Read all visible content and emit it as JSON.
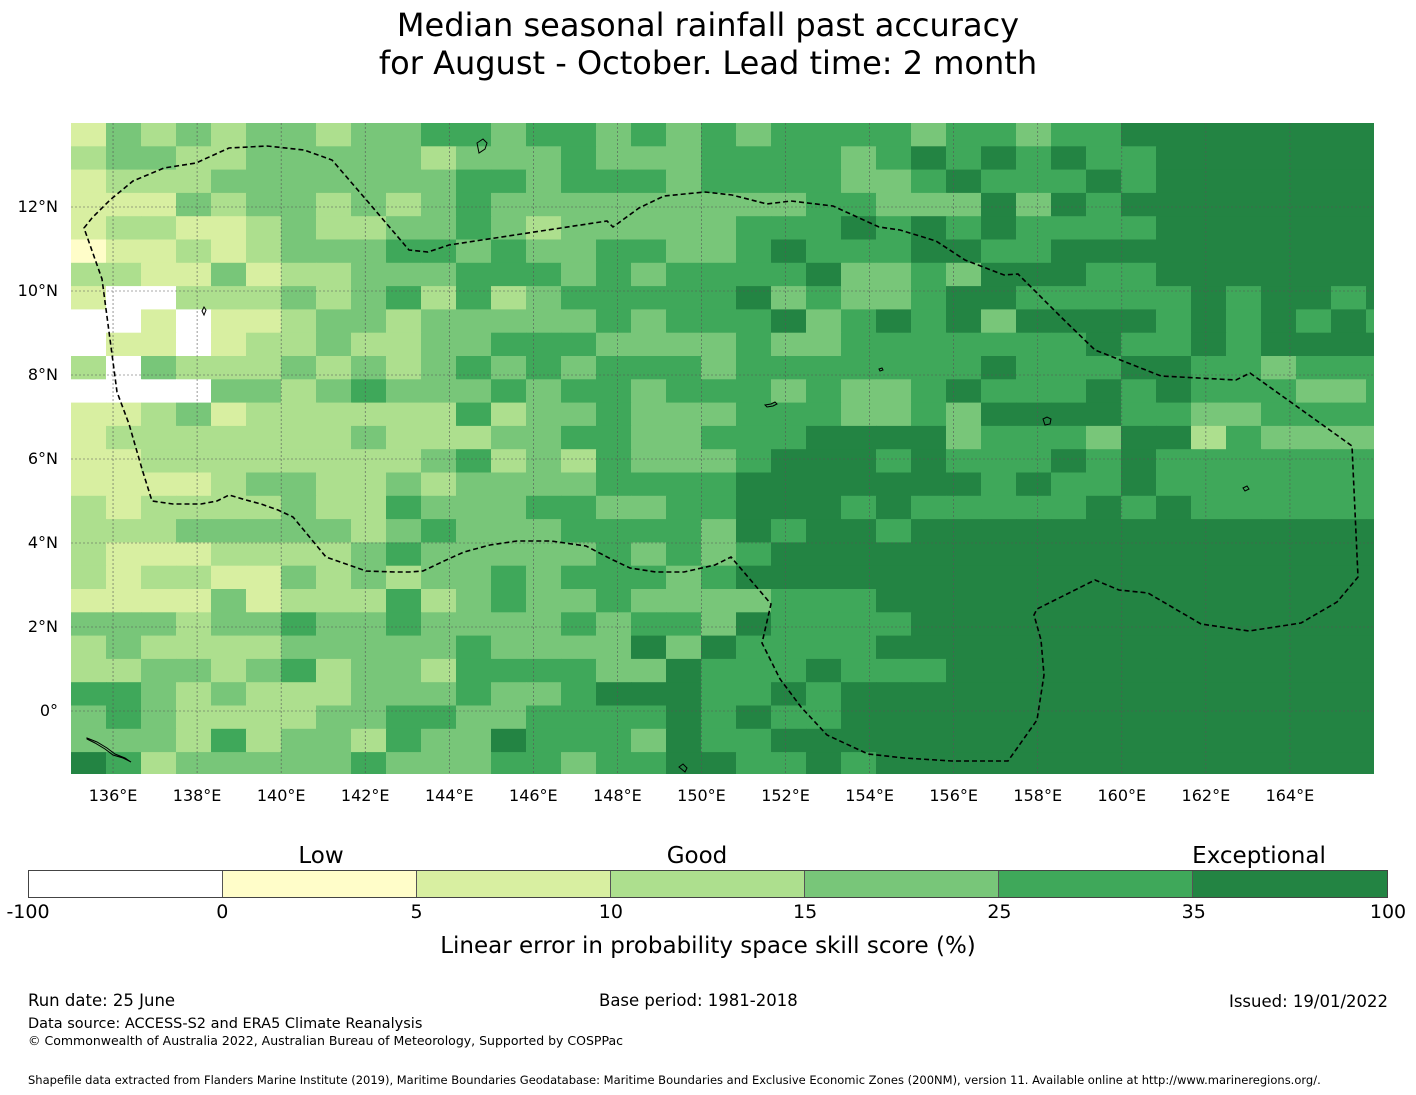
{
  "title": {
    "line1": "Median seasonal rainfall past accuracy",
    "line2": "for August - October. Lead time: 2 month"
  },
  "map": {
    "x_ticks": [
      "136°E",
      "138°E",
      "140°E",
      "142°E",
      "144°E",
      "146°E",
      "148°E",
      "150°E",
      "152°E",
      "154°E",
      "156°E",
      "158°E",
      "160°E",
      "162°E",
      "164°E"
    ],
    "y_ticks": [
      "12°N",
      "10°N",
      "8°N",
      "6°N",
      "4°N",
      "2°N",
      "0°"
    ],
    "lon_range": [
      135.0,
      166.0
    ],
    "lat_range": [
      -1.5,
      14.0
    ],
    "grid": true,
    "boundary_style": "dashed"
  },
  "colorbar": {
    "category_words": [
      "Low",
      "Good",
      "Exceptional"
    ],
    "tick_labels": [
      "-100",
      "0",
      "5",
      "10",
      "15",
      "25",
      "35",
      "100"
    ],
    "colors": [
      "#ffffff",
      "#fffdc9",
      "#d8efa1",
      "#addf8e",
      "#78c679",
      "#3fa85a",
      "#238443"
    ],
    "label": "Linear error in probability space skill score (%)"
  },
  "footer": {
    "run_date": "Run date: 25 June",
    "base_period": "Base period: 1981-2018",
    "issued": "Issued: 19/01/2022",
    "data_source": "Data source: ACCESS-S2 and ERA5 Climate Reanalysis",
    "copyright": "© Commonwealth of Australia 2022, Australian Bureau of Meteorology, Supported by COSPPac",
    "shapefile_note": "Shapefile data extracted from Flanders Marine Institute (2019), Maritime Boundaries Geodatabase: Maritime Boundaries and Exclusive Economic Zones (200NM), version 11. Available online at http://www.marineregions.org/."
  }
}
